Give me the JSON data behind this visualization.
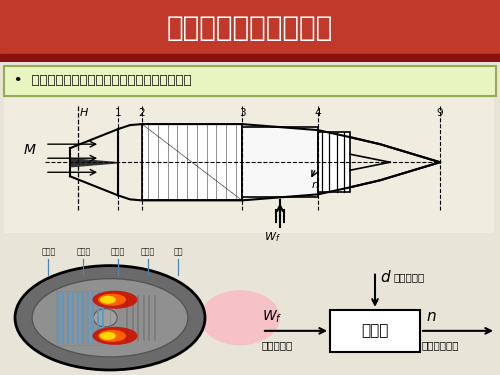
{
  "title": "基本发动机的动态方程",
  "title_bg_color": "#C0392B",
  "title_bg_dark": "#8B1010",
  "title_text_color": "#FFFFFF",
  "subtitle": "基本发动机：尾噴口不可调的非加力单轴浡噴",
  "subtitle_bg_color": "#E8F5C0",
  "subtitle_border_color": "#99AA55",
  "bg_color": "#E8E5D8",
  "section_labels": [
    "进气道",
    "压气机",
    "燃烧室",
    "涡轮机",
    "噴口"
  ],
  "box_label": "发动机",
  "wf_sub": "（控制量）",
  "n_sub": "（被控制量）",
  "d_sub": "（干扰量）",
  "stations": [
    "1",
    "2",
    "3",
    "4",
    "9"
  ]
}
